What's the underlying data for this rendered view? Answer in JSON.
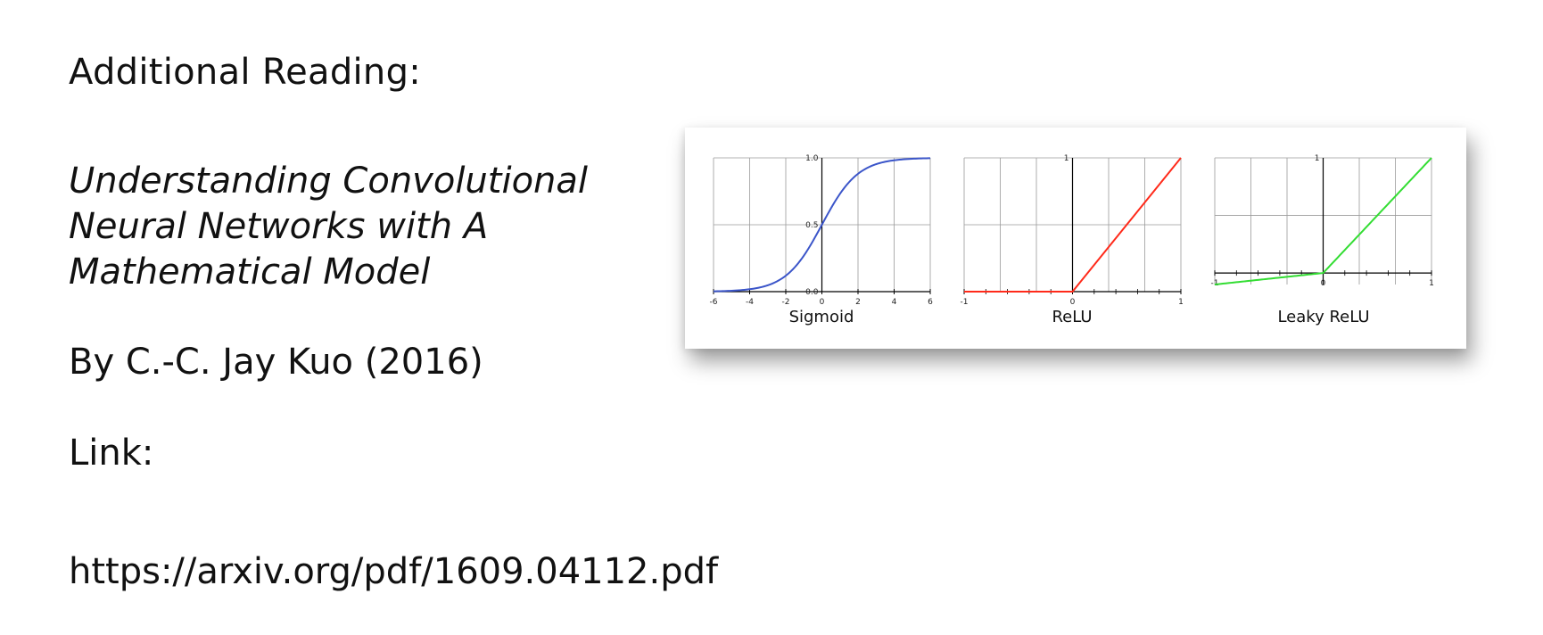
{
  "slide": {
    "heading": "Additional Reading:",
    "title_lines": [
      "Understanding Convolutional",
      "Neural Networks with A",
      "Mathematical Model"
    ],
    "author": "By C.-C. Jay Kuo (2016)",
    "link_label": "Link:",
    "link_url": "https://arxiv.org/pdf/1609.04112.pdf"
  },
  "chart_data": [
    {
      "type": "line",
      "title": "Sigmoid",
      "function": "sigmoid",
      "color": "#3b55c9",
      "xlim": [
        -6,
        6
      ],
      "ylim": [
        0.0,
        1.0
      ],
      "xticks": [
        "-6",
        "-4",
        "-2",
        "0",
        "2",
        "4",
        "6"
      ],
      "yticks": [
        "1.0",
        "0.5",
        "0.0"
      ],
      "points": {
        "x": [
          -6,
          -4,
          -2,
          0,
          2,
          4,
          6
        ],
        "y": [
          0.002,
          0.018,
          0.119,
          0.5,
          0.881,
          0.982,
          0.998
        ]
      }
    },
    {
      "type": "line",
      "title": "ReLU",
      "function": "relu",
      "color": "#ff2a1a",
      "xlim": [
        -1,
        1
      ],
      "ylim": [
        0,
        1
      ],
      "xticks": [
        "-1",
        "0",
        "1"
      ],
      "yticks": [
        "1"
      ],
      "points": {
        "x": [
          -1,
          0,
          1
        ],
        "y": [
          0,
          0,
          1
        ]
      }
    },
    {
      "type": "line",
      "title": "Leaky ReLU",
      "function": "leaky_relu",
      "color": "#33dd33",
      "xlim": [
        -1,
        1
      ],
      "ylim": [
        -0.1,
        1
      ],
      "xticks": [
        "-1",
        "0",
        "1"
      ],
      "yticks": [
        "1"
      ],
      "points": {
        "x": [
          -1,
          0,
          1
        ],
        "y": [
          -0.1,
          0,
          1
        ]
      }
    }
  ]
}
